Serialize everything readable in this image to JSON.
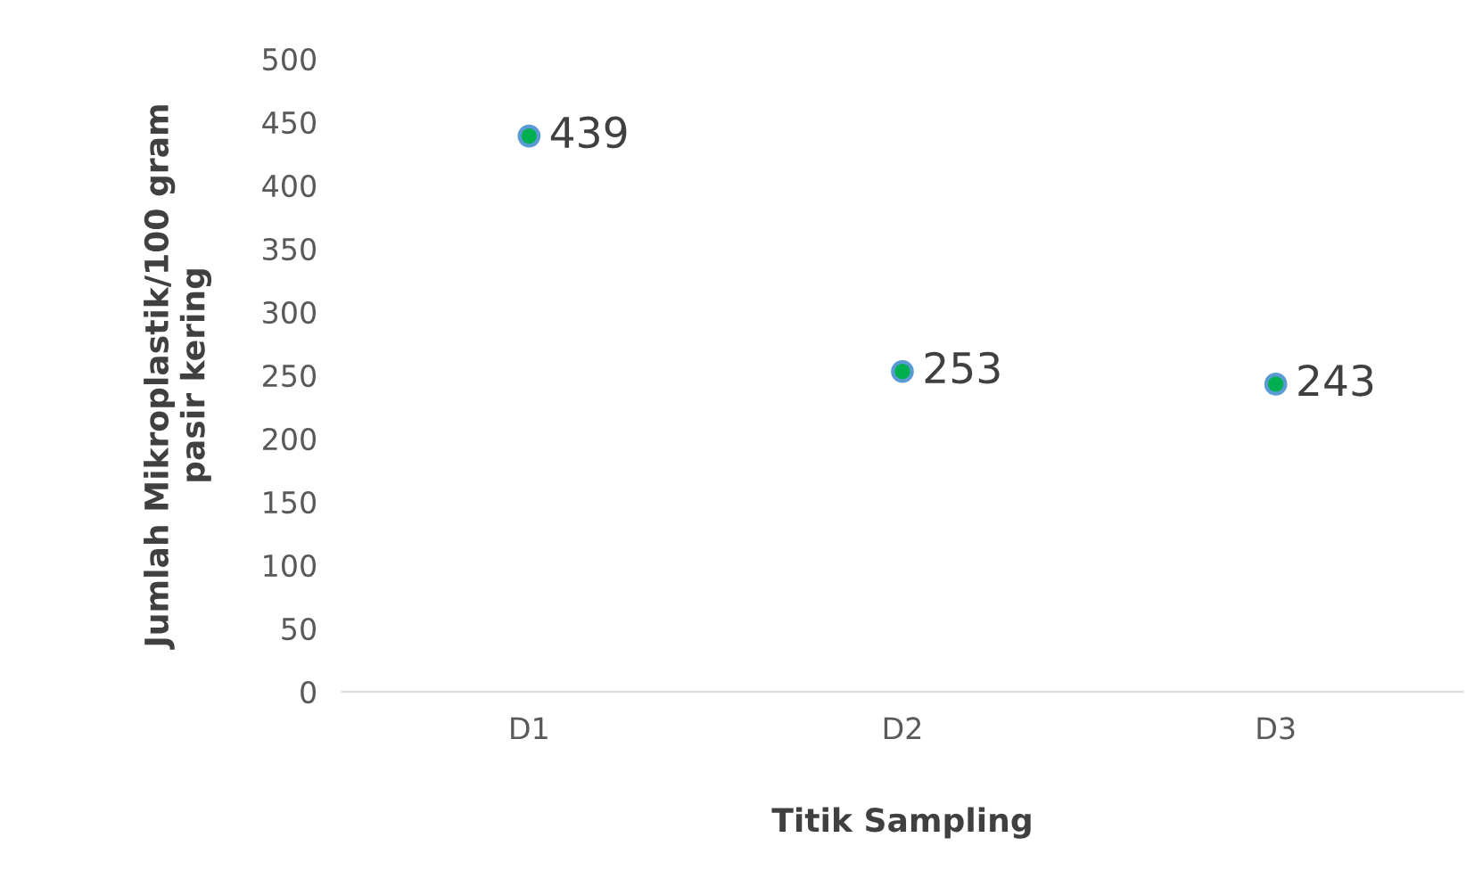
{
  "chart_data": {
    "type": "scatter",
    "xlabel": "Titik Sampling",
    "ylabel": "Jumlah Mikroplastik/100 gram\npasir kering",
    "categories": [
      "D1",
      "D2",
      "D3"
    ],
    "series": [
      {
        "color": "#00b050",
        "values": [
          439,
          253,
          243
        ]
      }
    ],
    "ylim": [
      0,
      500
    ],
    "yticks": [
      0,
      50,
      100,
      150,
      200,
      250,
      300,
      350,
      400,
      450,
      500
    ],
    "marker": "circle",
    "data_labels": true
  }
}
